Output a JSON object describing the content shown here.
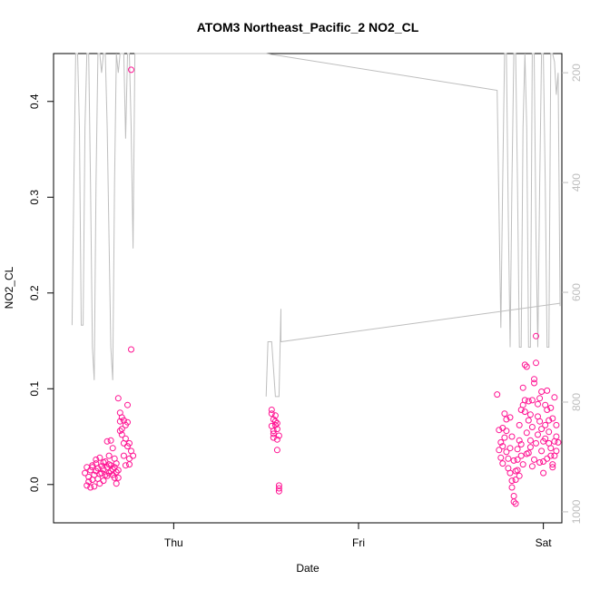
{
  "chart_data": {
    "type": "scatter",
    "title": "ATOM3 Northeast_Pacific_2 NO2_CL",
    "xlabel": "Date",
    "ylabel": "NO2_CL",
    "x_ticks": [
      "Thu",
      "Fri",
      "Sat"
    ],
    "ylim": [
      -0.04,
      0.45
    ],
    "y_ticks": [
      "0.0",
      "0.1",
      "0.2",
      "0.3",
      "0.4"
    ],
    "right_axis": {
      "label": "",
      "lim": [
        1020,
        165
      ],
      "reversed": true,
      "ticks": [
        "200",
        "400",
        "600",
        "800",
        "1000"
      ],
      "color": "#bebebe"
    },
    "grid": false,
    "legend": "none",
    "series": [
      {
        "marker": "open-circle",
        "color": "#ff1493",
        "points": [
          [
            -0.48,
            0.012
          ],
          [
            -0.47,
            0.018
          ],
          [
            -0.47,
            -0.001
          ],
          [
            -0.46,
            0.008
          ],
          [
            -0.46,
            0.003
          ],
          [
            -0.45,
            -0.003
          ],
          [
            -0.45,
            0.015
          ],
          [
            -0.44,
            0.02
          ],
          [
            -0.44,
            0.005
          ],
          [
            -0.43,
            0.01
          ],
          [
            -0.43,
            -0.002
          ],
          [
            -0.42,
            0.014
          ],
          [
            -0.42,
            0.022
          ],
          [
            -0.41,
            0.006
          ],
          [
            -0.41,
            0.017
          ],
          [
            -0.4,
            0.001
          ],
          [
            -0.4,
            0.028
          ],
          [
            -0.39,
            0.012
          ],
          [
            -0.39,
            0.019
          ],
          [
            -0.38,
            0.004
          ],
          [
            -0.38,
            0.016
          ],
          [
            -0.37,
            0.024
          ],
          [
            -0.37,
            0.01
          ],
          [
            -0.36,
            0.045
          ],
          [
            -0.36,
            0.018
          ],
          [
            -0.35,
            0.03
          ],
          [
            -0.35,
            0.012
          ],
          [
            -0.34,
            0.046
          ],
          [
            -0.34,
            0.02
          ],
          [
            -0.33,
            0.038
          ],
          [
            -0.33,
            0.016
          ],
          [
            -0.32,
            0.027
          ],
          [
            -0.32,
            0.018
          ],
          [
            -0.31,
            0.001
          ],
          [
            -0.31,
            0.022
          ],
          [
            -0.3,
            0.09
          ],
          [
            -0.3,
            0.007
          ],
          [
            -0.3,
            0.015
          ],
          [
            -0.29,
            0.066
          ],
          [
            -0.29,
            0.056
          ],
          [
            -0.29,
            0.075
          ],
          [
            -0.28,
            0.058
          ],
          [
            -0.28,
            0.07
          ],
          [
            -0.28,
            0.052
          ],
          [
            -0.27,
            0.067
          ],
          [
            -0.27,
            0.043
          ],
          [
            -0.27,
            0.03
          ],
          [
            -0.26,
            0.062
          ],
          [
            -0.26,
            0.048
          ],
          [
            -0.26,
            0.02
          ],
          [
            -0.25,
            0.083
          ],
          [
            -0.25,
            0.065
          ],
          [
            -0.25,
            0.04
          ],
          [
            -0.24,
            0.021
          ],
          [
            -0.24,
            0.027
          ],
          [
            -0.24,
            0.043
          ],
          [
            -0.23,
            0.433
          ],
          [
            -0.23,
            0.141
          ],
          [
            -0.23,
            0.035
          ],
          [
            -0.22,
            0.03
          ],
          [
            -0.35,
            0.021
          ],
          [
            -0.34,
            0.014
          ],
          [
            -0.33,
            0.01
          ],
          [
            -0.32,
            0.007
          ],
          [
            -0.31,
            0.013
          ],
          [
            -0.44,
            0.018
          ],
          [
            -0.42,
            0.026
          ],
          [
            -0.4,
            0.011
          ],
          [
            -0.38,
            0.023
          ],
          [
            -0.36,
            0.009
          ],
          [
            0.53,
            0.078
          ],
          [
            0.53,
            0.074
          ],
          [
            0.53,
            0.061
          ],
          [
            0.54,
            0.056
          ],
          [
            0.54,
            0.053
          ],
          [
            0.54,
            0.068
          ],
          [
            0.55,
            0.066
          ],
          [
            0.55,
            0.072
          ],
          [
            0.55,
            0.062
          ],
          [
            0.56,
            0.058
          ],
          [
            0.56,
            0.047
          ],
          [
            0.56,
            0.036
          ],
          [
            0.57,
            0.051
          ],
          [
            0.57,
            -0.001
          ],
          [
            0.57,
            -0.004
          ],
          [
            0.57,
            -0.007
          ],
          [
            0.54,
            0.049
          ],
          [
            0.56,
            0.064
          ],
          [
            1.75,
            0.094
          ],
          [
            1.76,
            0.057
          ],
          [
            1.76,
            0.036
          ],
          [
            1.77,
            0.044
          ],
          [
            1.77,
            0.028
          ],
          [
            1.78,
            0.022
          ],
          [
            1.78,
            0.059
          ],
          [
            1.79,
            0.074
          ],
          [
            1.79,
            0.049
          ],
          [
            1.8,
            0.034
          ],
          [
            1.8,
            0.068
          ],
          [
            1.81,
            0.027
          ],
          [
            1.81,
            0.017
          ],
          [
            1.82,
            0.012
          ],
          [
            1.82,
            0.07
          ],
          [
            1.83,
            0.004
          ],
          [
            1.83,
            -0.003
          ],
          [
            1.84,
            -0.012
          ],
          [
            1.84,
            -0.018
          ],
          [
            1.85,
            -0.02
          ],
          [
            1.85,
            0.005
          ],
          [
            1.86,
            0.026
          ],
          [
            1.86,
            0.037
          ],
          [
            1.87,
            0.009
          ],
          [
            1.87,
            0.062
          ],
          [
            1.88,
            0.042
          ],
          [
            1.88,
            0.078
          ],
          [
            1.89,
            0.083
          ],
          [
            1.89,
            0.101
          ],
          [
            1.9,
            0.125
          ],
          [
            1.9,
            0.088
          ],
          [
            1.91,
            0.123
          ],
          [
            1.91,
            0.054
          ],
          [
            1.92,
            0.033
          ],
          [
            1.92,
            0.067
          ],
          [
            1.93,
            0.046
          ],
          [
            1.93,
            0.039
          ],
          [
            1.94,
            0.019
          ],
          [
            1.94,
            0.088
          ],
          [
            1.95,
            0.11
          ],
          [
            1.95,
            0.106
          ],
          [
            1.96,
            0.127
          ],
          [
            1.96,
            0.155
          ],
          [
            1.97,
            0.071
          ],
          [
            1.97,
            0.052
          ],
          [
            1.98,
            0.066
          ],
          [
            1.98,
            0.09
          ],
          [
            1.99,
            0.097
          ],
          [
            1.99,
            0.035
          ],
          [
            2.0,
            0.024
          ],
          [
            2.0,
            0.045
          ],
          [
            2.01,
            0.062
          ],
          [
            2.01,
            0.083
          ],
          [
            2.02,
            0.098
          ],
          [
            2.02,
            0.078
          ],
          [
            2.03,
            0.055
          ],
          [
            2.03,
            0.043
          ],
          [
            2.04,
            0.038
          ],
          [
            2.04,
            0.03
          ],
          [
            2.05,
            0.021
          ],
          [
            2.05,
            0.069
          ],
          [
            2.06,
            0.045
          ],
          [
            2.06,
            0.03
          ],
          [
            2.07,
            0.05
          ],
          [
            2.07,
            0.035
          ],
          [
            2.08,
            0.044
          ],
          [
            1.78,
            0.04
          ],
          [
            1.8,
            0.056
          ],
          [
            1.82,
            0.038
          ],
          [
            1.84,
            0.025
          ],
          [
            1.86,
            0.015
          ],
          [
            1.88,
            0.03
          ],
          [
            1.9,
            0.076
          ],
          [
            1.92,
            0.087
          ],
          [
            1.94,
            0.06
          ],
          [
            1.96,
            0.043
          ],
          [
            1.98,
            0.023
          ],
          [
            2.0,
            0.012
          ],
          [
            2.02,
            0.027
          ],
          [
            2.04,
            0.08
          ],
          [
            2.06,
            0.091
          ],
          [
            1.83,
            0.05
          ],
          [
            1.87,
            0.046
          ],
          [
            1.91,
            0.032
          ],
          [
            1.95,
            0.026
          ],
          [
            1.99,
            0.058
          ],
          [
            2.03,
            0.067
          ],
          [
            2.07,
            0.062
          ],
          [
            1.85,
            0.014
          ],
          [
            1.89,
            0.021
          ],
          [
            1.93,
            0.073
          ],
          [
            1.97,
            0.084
          ],
          [
            2.01,
            0.048
          ],
          [
            2.05,
            0.018
          ]
        ]
      },
      {
        "name": "",
        "marker": "line",
        "color": "#bebebe",
        "axis": "right",
        "points": [
          [
            -0.55,
            660
          ],
          [
            -0.54,
            400
          ],
          [
            -0.53,
            165
          ],
          [
            -0.52,
            165
          ],
          [
            -0.51,
            300
          ],
          [
            -0.5,
            660
          ],
          [
            -0.49,
            660
          ],
          [
            -0.48,
            300
          ],
          [
            -0.47,
            165
          ],
          [
            -0.46,
            165
          ],
          [
            -0.45,
            400
          ],
          [
            -0.44,
            700
          ],
          [
            -0.43,
            760
          ],
          [
            -0.42,
            400
          ],
          [
            -0.41,
            165
          ],
          [
            -0.4,
            165
          ],
          [
            -0.39,
            200
          ],
          [
            -0.38,
            165
          ],
          [
            -0.37,
            165
          ],
          [
            -0.36,
            300
          ],
          [
            -0.35,
            500
          ],
          [
            -0.34,
            700
          ],
          [
            -0.33,
            760
          ],
          [
            -0.32,
            400
          ],
          [
            -0.31,
            165
          ],
          [
            -0.3,
            200
          ],
          [
            -0.29,
            165
          ],
          [
            -0.28,
            165
          ],
          [
            -0.27,
            165
          ],
          [
            -0.26,
            320
          ],
          [
            -0.25,
            165
          ],
          [
            -0.24,
            165
          ],
          [
            -0.23,
            300
          ],
          [
            -0.22,
            520
          ],
          [
            -0.21,
            165
          ],
          [
            0.5,
            165
          ],
          [
            1.75,
            232
          ],
          [
            1.77,
            665
          ],
          [
            1.78,
            400
          ],
          [
            1.79,
            165
          ],
          [
            1.8,
            165
          ],
          [
            1.81,
            450
          ],
          [
            1.82,
            700
          ],
          [
            1.83,
            400
          ],
          [
            1.84,
            165
          ],
          [
            1.85,
            165
          ],
          [
            1.86,
            400
          ],
          [
            1.87,
            700
          ],
          [
            1.88,
            700
          ],
          [
            1.89,
            300
          ],
          [
            1.9,
            165
          ],
          [
            1.91,
            300
          ],
          [
            1.92,
            700
          ],
          [
            1.93,
            700
          ],
          [
            1.94,
            165
          ],
          [
            1.95,
            165
          ],
          [
            1.96,
            500
          ],
          [
            1.97,
            700
          ],
          [
            1.98,
            400
          ],
          [
            1.99,
            165
          ],
          [
            2.0,
            165
          ],
          [
            2.01,
            400
          ],
          [
            2.02,
            700
          ],
          [
            2.03,
            700
          ],
          [
            2.04,
            165
          ],
          [
            2.05,
            165
          ],
          [
            2.06,
            180
          ],
          [
            2.07,
            240
          ],
          [
            2.08,
            200
          ],
          [
            2.09,
            620
          ],
          [
            2.09,
            625
          ]
        ]
      },
      {
        "name": "",
        "marker": "line",
        "color": "#bebebe",
        "axis": "right",
        "points": [
          [
            0.5,
            790
          ],
          [
            0.51,
            690
          ],
          [
            0.52,
            690
          ],
          [
            0.53,
            690
          ],
          [
            0.55,
            790
          ],
          [
            0.57,
            790
          ],
          [
            0.58,
            630
          ],
          [
            0.58,
            690
          ],
          [
            2.09,
            620
          ]
        ]
      }
    ]
  }
}
